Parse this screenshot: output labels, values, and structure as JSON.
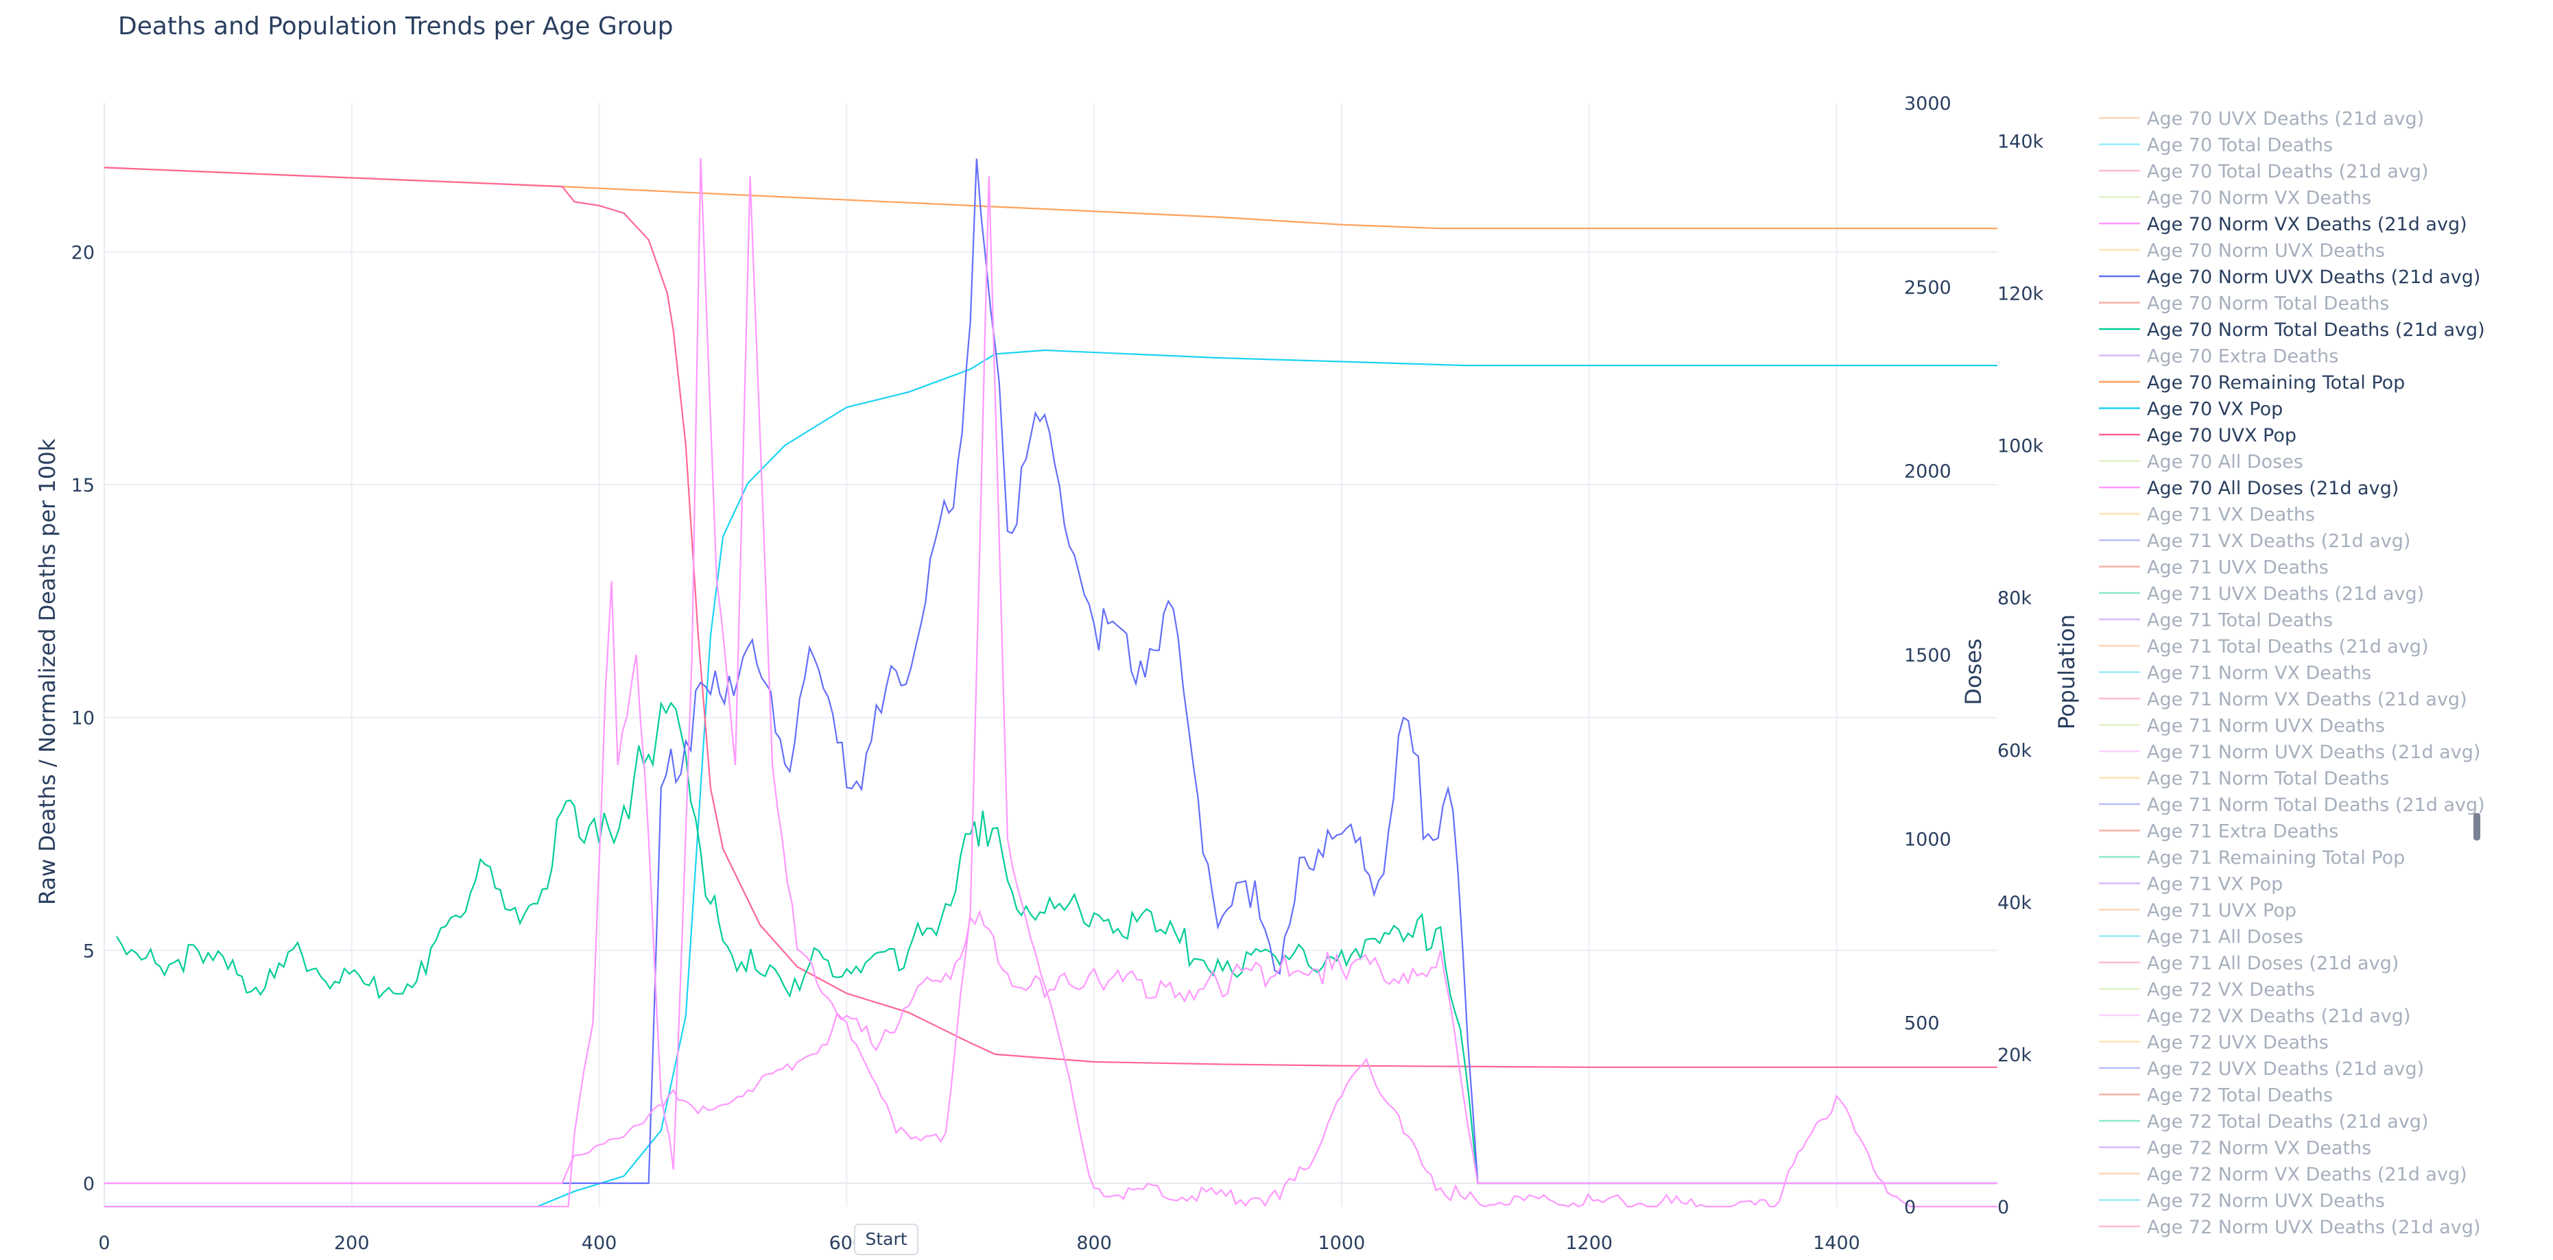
{
  "chart_data": {
    "type": "line",
    "title": "Deaths and Population Trends per Age Group",
    "axes": {
      "x": {
        "range": [
          0,
          1530
        ],
        "ticks": [
          0,
          200,
          400,
          600,
          800,
          1000,
          1200,
          1400
        ]
      },
      "y_left": {
        "title": "Raw Deaths / Normalized Deaths per 100k",
        "range": [
          -0.5,
          23.2
        ],
        "ticks": [
          0,
          5,
          10,
          15,
          20
        ]
      },
      "y_doses": {
        "title": "Doses",
        "range": [
          0,
          3000
        ],
        "ticks": [
          0,
          500,
          1000,
          1500,
          2000,
          2500,
          3000
        ]
      },
      "y_pop": {
        "title": "Population",
        "range": [
          0,
          145000
        ],
        "ticks": [
          0,
          20000,
          40000,
          60000,
          80000,
          100000,
          120000,
          140000
        ],
        "tick_labels": [
          "0",
          "20k",
          "40k",
          "60k",
          "80k",
          "100k",
          "120k",
          "140k"
        ]
      }
    },
    "grid": true,
    "legend_position": "right",
    "series": [
      {
        "name": "Age 70 Remaining Total Pop",
        "axis": "pop",
        "color": "#FFA15A",
        "points": [
          [
            0,
            136500
          ],
          [
            370,
            134000
          ],
          [
            500,
            133000
          ],
          [
            700,
            131500
          ],
          [
            900,
            130000
          ],
          [
            1000,
            129000
          ],
          [
            1080,
            128500
          ],
          [
            1200,
            128500
          ],
          [
            1530,
            128500
          ]
        ]
      },
      {
        "name": "Age 70 VX Pop",
        "axis": "pop",
        "color": "#19D3F3",
        "points": [
          [
            0,
            0
          ],
          [
            350,
            0
          ],
          [
            380,
            2000
          ],
          [
            420,
            4000
          ],
          [
            450,
            10000
          ],
          [
            470,
            25000
          ],
          [
            480,
            50000
          ],
          [
            490,
            75000
          ],
          [
            500,
            88000
          ],
          [
            520,
            95000
          ],
          [
            550,
            100000
          ],
          [
            600,
            105000
          ],
          [
            650,
            107000
          ],
          [
            700,
            110000
          ],
          [
            720,
            112000
          ],
          [
            760,
            112500
          ],
          [
            900,
            111500
          ],
          [
            1000,
            111000
          ],
          [
            1100,
            110500
          ],
          [
            1530,
            110500
          ]
        ]
      },
      {
        "name": "Age 70 UVX Pop",
        "axis": "pop",
        "color": "#FF6692",
        "points": [
          [
            0,
            136500
          ],
          [
            370,
            134000
          ],
          [
            380,
            132000
          ],
          [
            400,
            131500
          ],
          [
            420,
            130500
          ],
          [
            440,
            127000
          ],
          [
            455,
            120000
          ],
          [
            460,
            115000
          ],
          [
            470,
            100000
          ],
          [
            480,
            75000
          ],
          [
            490,
            55000
          ],
          [
            500,
            47000
          ],
          [
            530,
            37000
          ],
          [
            560,
            31500
          ],
          [
            600,
            28000
          ],
          [
            650,
            25500
          ],
          [
            700,
            21500
          ],
          [
            720,
            20000
          ],
          [
            800,
            19000
          ],
          [
            900,
            18700
          ],
          [
            1000,
            18500
          ],
          [
            1200,
            18300
          ],
          [
            1530,
            18300
          ]
        ]
      },
      {
        "name": "Age 70 Norm Total Deaths (21d avg)",
        "axis": "left",
        "color": "#00CC96",
        "points": [
          [
            10,
            5.3
          ],
          [
            30,
            4.8
          ],
          [
            60,
            4.8
          ],
          [
            100,
            4.6
          ],
          [
            130,
            4.2
          ],
          [
            160,
            4.9
          ],
          [
            190,
            4.3
          ],
          [
            230,
            4.2
          ],
          [
            260,
            4.5
          ],
          [
            280,
            5.7
          ],
          [
            300,
            6.5
          ],
          [
            320,
            6.3
          ],
          [
            340,
            5.8
          ],
          [
            350,
            6.0
          ],
          [
            370,
            8.0
          ],
          [
            380,
            8.1
          ],
          [
            400,
            7.3
          ],
          [
            420,
            8.1
          ],
          [
            440,
            9.2
          ],
          [
            450,
            10.3
          ],
          [
            470,
            9.2
          ],
          [
            490,
            6.0
          ],
          [
            500,
            5.2
          ],
          [
            530,
            4.5
          ],
          [
            550,
            4.2
          ],
          [
            570,
            4.7
          ],
          [
            600,
            4.6
          ],
          [
            650,
            5.0
          ],
          [
            680,
            6.0
          ],
          [
            700,
            7.5
          ],
          [
            710,
            8.0
          ],
          [
            730,
            6.5
          ],
          [
            760,
            5.8
          ],
          [
            800,
            5.8
          ],
          [
            850,
            5.4
          ],
          [
            900,
            4.8
          ],
          [
            950,
            4.7
          ],
          [
            1000,
            5.0
          ],
          [
            1050,
            5.2
          ],
          [
            1080,
            5.5
          ],
          [
            1100,
            2.5
          ],
          [
            1110,
            0
          ],
          [
            1530,
            0
          ]
        ]
      },
      {
        "name": "Age 70 Norm UVX Deaths (21d avg)",
        "axis": "left",
        "color": "#636EFA",
        "points": [
          [
            0,
            0
          ],
          [
            440,
            0
          ],
          [
            450,
            8.5
          ],
          [
            470,
            9.5
          ],
          [
            490,
            10.5
          ],
          [
            520,
            11.5
          ],
          [
            550,
            9.0
          ],
          [
            570,
            11.5
          ],
          [
            600,
            8.5
          ],
          [
            620,
            9.5
          ],
          [
            640,
            11.0
          ],
          [
            660,
            12.0
          ],
          [
            690,
            15.5
          ],
          [
            700,
            18.5
          ],
          [
            705,
            22.0
          ],
          [
            720,
            18.0
          ],
          [
            730,
            14.0
          ],
          [
            760,
            16.5
          ],
          [
            800,
            12.0
          ],
          [
            830,
            11.0
          ],
          [
            860,
            12.5
          ],
          [
            880,
            9.0
          ],
          [
            900,
            5.5
          ],
          [
            930,
            6.5
          ],
          [
            950,
            4.5
          ],
          [
            970,
            7.0
          ],
          [
            1000,
            7.5
          ],
          [
            1030,
            6.5
          ],
          [
            1050,
            10.0
          ],
          [
            1070,
            7.5
          ],
          [
            1090,
            8.0
          ],
          [
            1110,
            0
          ],
          [
            1530,
            0
          ]
        ]
      },
      {
        "name": "Age 70 Norm VX Deaths (21d avg)",
        "axis": "left",
        "color": "#FF97FF",
        "points": [
          [
            0,
            0
          ],
          [
            370,
            0
          ],
          [
            380,
            0.6
          ],
          [
            420,
            1.0
          ],
          [
            460,
            2.0
          ],
          [
            480,
            1.5
          ],
          [
            520,
            2.0
          ],
          [
            560,
            2.6
          ],
          [
            600,
            3.6
          ],
          [
            620,
            3.0
          ],
          [
            650,
            3.8
          ],
          [
            680,
            4.5
          ],
          [
            700,
            5.7
          ],
          [
            730,
            4.5
          ],
          [
            760,
            4.0
          ],
          [
            800,
            4.6
          ],
          [
            850,
            4.0
          ],
          [
            900,
            4.3
          ],
          [
            950,
            4.6
          ],
          [
            1000,
            4.6
          ],
          [
            1050,
            4.5
          ],
          [
            1080,
            5.0
          ],
          [
            1095,
            2.5
          ],
          [
            1110,
            0
          ],
          [
            1530,
            0
          ]
        ]
      },
      {
        "name": "Age 70 All Doses (21d avg)",
        "axis": "doses",
        "color": "#FF97FF",
        "points": [
          [
            0,
            0
          ],
          [
            375,
            0
          ],
          [
            380,
            200
          ],
          [
            395,
            500
          ],
          [
            405,
            1400
          ],
          [
            410,
            1700
          ],
          [
            415,
            1200
          ],
          [
            430,
            1500
          ],
          [
            440,
            1000
          ],
          [
            450,
            300
          ],
          [
            460,
            100
          ],
          [
            475,
            1500
          ],
          [
            482,
            2850
          ],
          [
            495,
            1700
          ],
          [
            510,
            1200
          ],
          [
            522,
            2800
          ],
          [
            540,
            1200
          ],
          [
            560,
            700
          ],
          [
            600,
            500
          ],
          [
            640,
            200
          ],
          [
            680,
            200
          ],
          [
            700,
            800
          ],
          [
            715,
            2800
          ],
          [
            730,
            1000
          ],
          [
            760,
            600
          ],
          [
            800,
            50
          ],
          [
            950,
            20
          ],
          [
            970,
            100
          ],
          [
            1000,
            300
          ],
          [
            1020,
            400
          ],
          [
            1050,
            200
          ],
          [
            1080,
            50
          ],
          [
            1100,
            20
          ],
          [
            1350,
            0
          ],
          [
            1380,
            200
          ],
          [
            1400,
            300
          ],
          [
            1430,
            100
          ],
          [
            1460,
            0
          ],
          [
            1530,
            0
          ]
        ]
      }
    ]
  },
  "legend": {
    "items": [
      {
        "label": "Age 70 UVX Deaths (21d avg)",
        "color": "#FFA15A",
        "active": false
      },
      {
        "label": "Age 70 Total Deaths",
        "color": "#19D3F3",
        "active": false
      },
      {
        "label": "Age 70 Total Deaths (21d avg)",
        "color": "#FF6692",
        "active": false
      },
      {
        "label": "Age 70 Norm VX Deaths",
        "color": "#B6E880",
        "active": false
      },
      {
        "label": "Age 70 Norm VX Deaths (21d avg)",
        "color": "#FF97FF",
        "active": true
      },
      {
        "label": "Age 70 Norm UVX Deaths",
        "color": "#FECB52",
        "active": false
      },
      {
        "label": "Age 70 Norm UVX Deaths (21d avg)",
        "color": "#636EFA",
        "active": true
      },
      {
        "label": "Age 70 Norm Total Deaths",
        "color": "#EF553B",
        "active": false
      },
      {
        "label": "Age 70 Norm Total Deaths (21d avg)",
        "color": "#00CC96",
        "active": true
      },
      {
        "label": "Age 70 Extra Deaths",
        "color": "#AB63FA",
        "active": false
      },
      {
        "label": "Age 70 Remaining Total Pop",
        "color": "#FFA15A",
        "active": true
      },
      {
        "label": "Age 70 VX Pop",
        "color": "#19D3F3",
        "active": true
      },
      {
        "label": "Age 70 UVX Pop",
        "color": "#FF6692",
        "active": true
      },
      {
        "label": "Age 70 All Doses",
        "color": "#B6E880",
        "active": false
      },
      {
        "label": "Age 70 All Doses (21d avg)",
        "color": "#FF97FF",
        "active": true
      },
      {
        "label": "Age 71 VX Deaths",
        "color": "#FECB52",
        "active": false
      },
      {
        "label": "Age 71 VX Deaths (21d avg)",
        "color": "#636EFA",
        "active": false
      },
      {
        "label": "Age 71 UVX Deaths",
        "color": "#EF553B",
        "active": false
      },
      {
        "label": "Age 71 UVX Deaths (21d avg)",
        "color": "#00CC96",
        "active": false
      },
      {
        "label": "Age 71 Total Deaths",
        "color": "#AB63FA",
        "active": false
      },
      {
        "label": "Age 71 Total Deaths (21d avg)",
        "color": "#FFA15A",
        "active": false
      },
      {
        "label": "Age 71 Norm VX Deaths",
        "color": "#19D3F3",
        "active": false
      },
      {
        "label": "Age 71 Norm VX Deaths (21d avg)",
        "color": "#FF6692",
        "active": false
      },
      {
        "label": "Age 71 Norm UVX Deaths",
        "color": "#B6E880",
        "active": false
      },
      {
        "label": "Age 71 Norm UVX Deaths (21d avg)",
        "color": "#FF97FF",
        "active": false
      },
      {
        "label": "Age 71 Norm Total Deaths",
        "color": "#FECB52",
        "active": false
      },
      {
        "label": "Age 71 Norm Total Deaths (21d avg)",
        "color": "#636EFA",
        "active": false
      },
      {
        "label": "Age 71 Extra Deaths",
        "color": "#EF553B",
        "active": false
      },
      {
        "label": "Age 71 Remaining Total Pop",
        "color": "#00CC96",
        "active": false
      },
      {
        "label": "Age 71 VX Pop",
        "color": "#AB63FA",
        "active": false
      },
      {
        "label": "Age 71 UVX Pop",
        "color": "#FFA15A",
        "active": false
      },
      {
        "label": "Age 71 All Doses",
        "color": "#19D3F3",
        "active": false
      },
      {
        "label": "Age 71 All Doses (21d avg)",
        "color": "#FF6692",
        "active": false
      },
      {
        "label": "Age 72 VX Deaths",
        "color": "#B6E880",
        "active": false
      },
      {
        "label": "Age 72 VX Deaths (21d avg)",
        "color": "#FF97FF",
        "active": false
      },
      {
        "label": "Age 72 UVX Deaths",
        "color": "#FECB52",
        "active": false
      },
      {
        "label": "Age 72 UVX Deaths (21d avg)",
        "color": "#636EFA",
        "active": false
      },
      {
        "label": "Age 72 Total Deaths",
        "color": "#EF553B",
        "active": false
      },
      {
        "label": "Age 72 Total Deaths (21d avg)",
        "color": "#00CC96",
        "active": false
      },
      {
        "label": "Age 72 Norm VX Deaths",
        "color": "#AB63FA",
        "active": false
      },
      {
        "label": "Age 72 Norm VX Deaths (21d avg)",
        "color": "#FFA15A",
        "active": false
      },
      {
        "label": "Age 72 Norm UVX Deaths",
        "color": "#19D3F3",
        "active": false
      },
      {
        "label": "Age 72 Norm UVX Deaths (21d avg)",
        "color": "#FF6692",
        "active": false
      }
    ]
  },
  "controls": {
    "start_label": "Start"
  },
  "colors": {
    "text": "#2a3f5f",
    "inactive_text": "#a6afbd",
    "grid": "#ebeef5",
    "scrollbar": "#7a8294"
  }
}
